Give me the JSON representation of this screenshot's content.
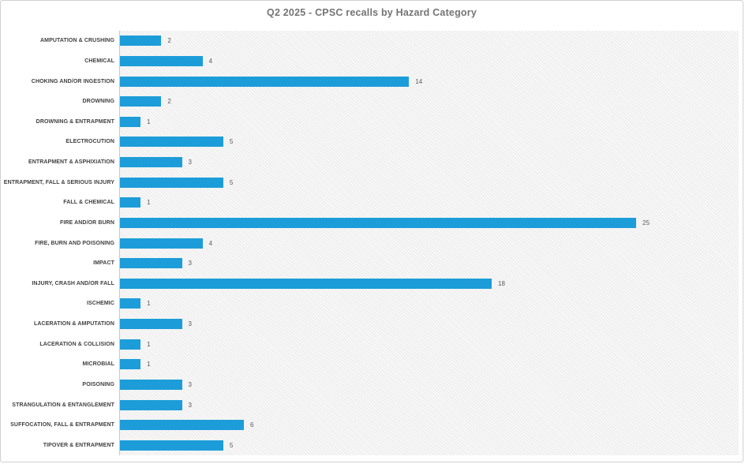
{
  "window": {
    "background": "#ffffff",
    "border_color": "#d0d0d0"
  },
  "chart_data": {
    "type": "bar",
    "orientation": "horizontal",
    "title": "Q2 2025 - CPSC recalls by Hazard Category",
    "categories": [
      "AMPUTATION & CRUSHING",
      "CHEMICAL",
      "CHOKING AND/OR INGESTION",
      "DROWNING",
      "DROWNING & ENTRAPMENT",
      "ELECTROCUTION",
      "ENTRAPMENT & ASPHIXIATION",
      "ENTRAPMENT, FALL & SERIOUS INJURY",
      "FALL & CHEMICAL",
      "FIRE AND/OR BURN",
      "FIRE, BURN AND POISONING",
      "IMPACT",
      "INJURY, CRASH AND/OR FALL",
      "ISCHEMIC",
      "LACERATION & AMPUTATION",
      "LACERATION & COLLISION",
      "MICROBIAL",
      "POISONING",
      "STRANGULATION & ENTANGLEMENT",
      "SUFFOCATION, FALL & ENTRAPMENT",
      "TIPOVER & ENTRAPMENT"
    ],
    "values": [
      2,
      4,
      14,
      2,
      1,
      5,
      3,
      5,
      1,
      25,
      4,
      3,
      18,
      1,
      3,
      1,
      1,
      3,
      3,
      6,
      5
    ],
    "xlim": [
      0,
      30
    ],
    "grid": false,
    "data_labels": true,
    "legend": "none",
    "bar_color": "#1C9DD9",
    "title_color": "#747474",
    "category_label_color": "#3f3f3f",
    "value_label_color": "#595959",
    "axis_line_color": "#c9c9c9",
    "plot_background": "#f7f7f7"
  }
}
